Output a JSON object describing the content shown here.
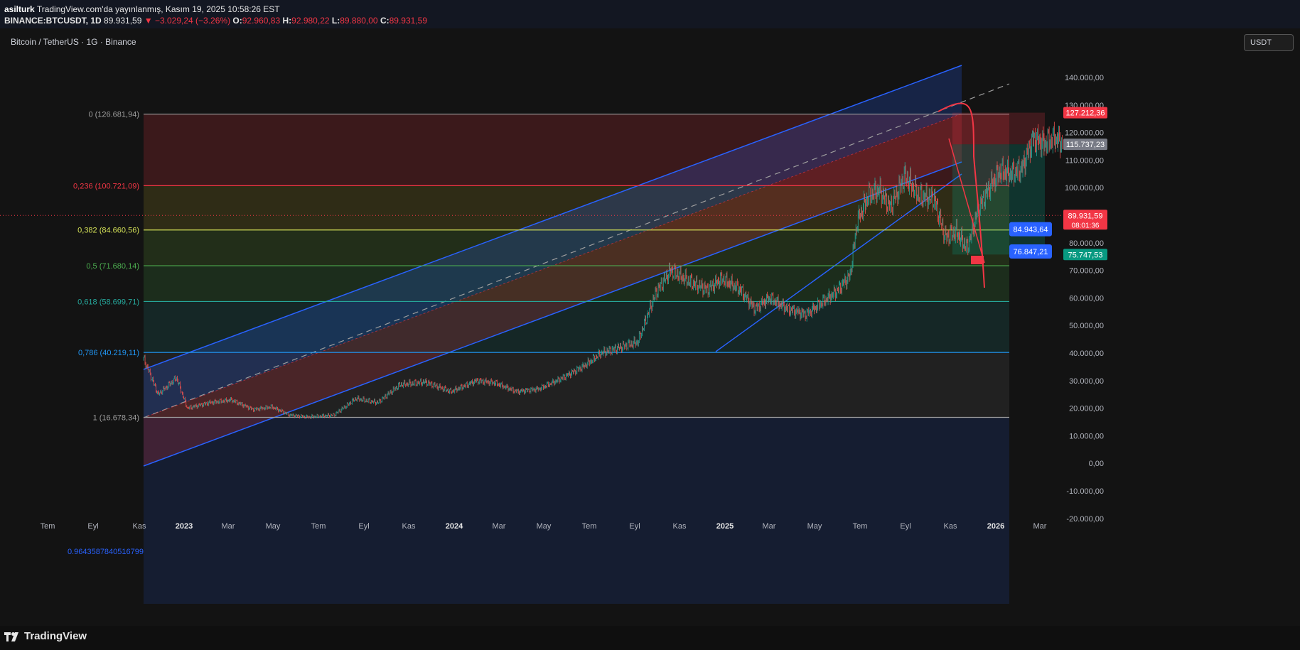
{
  "header": {
    "author": "asilturk",
    "published": "TradingView.com'da yayınlanmış, Kasım 19, 2025 10:58:26 EST",
    "symbol": "BINANCE:BTCUSDT, 1D",
    "last": "89.931,59",
    "change": "−3.029,24 (−3.26%)",
    "open_label": "O:",
    "open": "92.960,83",
    "high_label": "H:",
    "high": "92.980,22",
    "low_label": "L:",
    "low": "89.880,00",
    "close_label": "C:",
    "close": "89.931,59"
  },
  "symbol_title": "Bitcoin / TetherUS · 1G · Binance",
  "currency_button": "USDT",
  "footer_logo": "TradingView",
  "colors": {
    "up": "#26a69a",
    "down": "#ef5350",
    "channel": "#2962ff",
    "fib_red": "#f23645",
    "fib_yellow": "#d4e157",
    "fib_green": "#4caf50",
    "fib_teal": "#26a69a",
    "fib_blue": "#2196f3"
  },
  "chart_data": {
    "type": "candlestick",
    "title": "Bitcoin / TetherUS · 1G · Binance",
    "ylim": [
      -26000,
      146000
    ],
    "x_ticks": [
      "Tem",
      "Eyl",
      "Kas",
      "2023",
      "Mar",
      "May",
      "Tem",
      "Eyl",
      "Kas",
      "2024",
      "Mar",
      "May",
      "Tem",
      "Eyl",
      "Kas",
      "2025",
      "Mar",
      "May",
      "Tem",
      "Eyl",
      "Kas",
      "2026",
      "Mar"
    ],
    "y_ticks": [
      "140.000,00",
      "130.000,00",
      "120.000,00",
      "110.000,00",
      "100.000,00",
      "90.000,00",
      "80.000,00",
      "70.000,00",
      "60.000,00",
      "50.000,00",
      "40.000,00",
      "30.000,00",
      "20.000,00",
      "10.000,00",
      "0,00",
      "-10.000,00",
      "-20.000,00"
    ],
    "y_tick_values": [
      140000,
      130000,
      120000,
      110000,
      100000,
      90000,
      80000,
      70000,
      60000,
      50000,
      40000,
      30000,
      20000,
      10000,
      0,
      -10000,
      -20000
    ],
    "fib_levels": [
      {
        "ratio": 0,
        "price": 126681.94,
        "label": "0 (126.681,94)",
        "color": "#9e9e9e"
      },
      {
        "ratio": 0.236,
        "price": 100721.09,
        "label": "0,236 (100.721,09)",
        "color": "#f23645"
      },
      {
        "ratio": 0.382,
        "price": 84660.56,
        "label": "0,382 (84.660,56)",
        "color": "#d4e157"
      },
      {
        "ratio": 0.5,
        "price": 71680.14,
        "label": "0,5 (71.680,14)",
        "color": "#4caf50"
      },
      {
        "ratio": 0.618,
        "price": 58699.71,
        "label": "0,618 (58.699,71)",
        "color": "#26a69a"
      },
      {
        "ratio": 0.786,
        "price": 40219.11,
        "label": "0,786 (40.219,11)",
        "color": "#2196f3"
      },
      {
        "ratio": 1,
        "price": 16678.34,
        "label": "1 (16.678,34)",
        "color": "#9e9e9e"
      }
    ],
    "channel_extension_label": "0.9643587840516799",
    "price_tags": [
      {
        "price": 127212.36,
        "label": "127.212,36",
        "color": "#f23645"
      },
      {
        "price": 115737.23,
        "label": "115.737,23",
        "color": "#787b86"
      },
      {
        "price": 89931.59,
        "label": "89.931,59",
        "sub": "08:01:36",
        "color": "#f23645"
      },
      {
        "price": 75747.53,
        "label": "75.747,53",
        "color": "#089981"
      }
    ],
    "floating_tags": [
      {
        "price": 84943.64,
        "label": "84.943,64"
      },
      {
        "price": 76847.21,
        "label": "76.847,21"
      }
    ],
    "price_path": [
      [
        0,
        38000
      ],
      [
        20,
        25000
      ],
      [
        45,
        31000
      ],
      [
        60,
        20000
      ],
      [
        90,
        22000
      ],
      [
        120,
        23000
      ],
      [
        150,
        19500
      ],
      [
        175,
        20500
      ],
      [
        200,
        17500
      ],
      [
        225,
        16800
      ],
      [
        260,
        17500
      ],
      [
        290,
        23500
      ],
      [
        320,
        22000
      ],
      [
        350,
        28500
      ],
      [
        385,
        29500
      ],
      [
        420,
        26000
      ],
      [
        455,
        30000
      ],
      [
        480,
        29200
      ],
      [
        510,
        26000
      ],
      [
        540,
        27000
      ],
      [
        565,
        30000
      ],
      [
        600,
        35000
      ],
      [
        625,
        40000
      ],
      [
        650,
        42000
      ],
      [
        675,
        44000
      ],
      [
        700,
        62000
      ],
      [
        720,
        70000
      ],
      [
        745,
        66000
      ],
      [
        770,
        63000
      ],
      [
        790,
        67000
      ],
      [
        815,
        63000
      ],
      [
        835,
        56000
      ],
      [
        855,
        60000
      ],
      [
        880,
        56000
      ],
      [
        905,
        54000
      ],
      [
        925,
        58000
      ],
      [
        945,
        62000
      ],
      [
        965,
        68000
      ],
      [
        975,
        88000
      ],
      [
        990,
        97000
      ],
      [
        1005,
        99000
      ],
      [
        1020,
        93000
      ],
      [
        1040,
        104000
      ],
      [
        1060,
        97000
      ],
      [
        1080,
        96000
      ],
      [
        1095,
        82000
      ],
      [
        1110,
        84000
      ],
      [
        1125,
        78000
      ],
      [
        1140,
        92000
      ],
      [
        1155,
        100000
      ],
      [
        1170,
        106000
      ],
      [
        1185,
        105000
      ],
      [
        1200,
        107000
      ],
      [
        1215,
        118000
      ],
      [
        1230,
        116000
      ],
      [
        1245,
        118000
      ],
      [
        1260,
        115000
      ],
      [
        1275,
        111000
      ],
      [
        1290,
        114000
      ],
      [
        1300,
        110000
      ],
      [
        1310,
        123000
      ],
      [
        1320,
        112000
      ],
      [
        1335,
        110000
      ],
      [
        1345,
        103000
      ],
      [
        1355,
        90000
      ]
    ]
  }
}
